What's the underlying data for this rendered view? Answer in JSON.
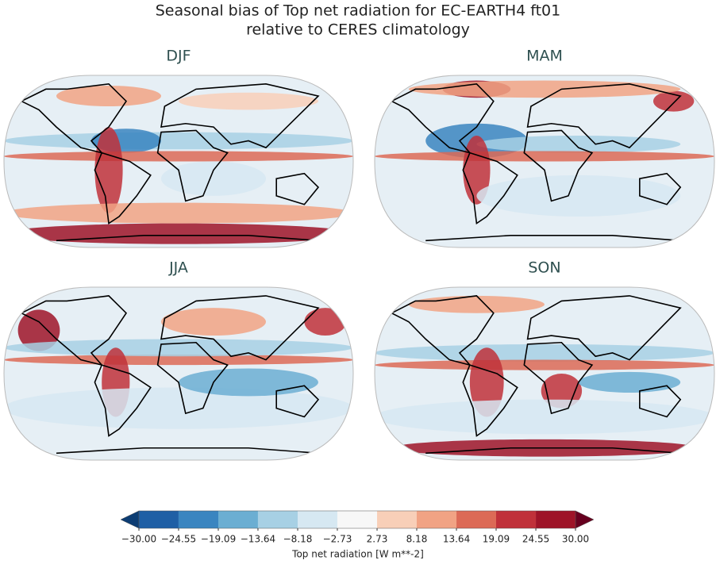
{
  "figure": {
    "title": [
      "Seasonal bias of Top net radiation for EC-EARTH4 ft01",
      "relative to CERES climatology"
    ],
    "panels": [
      {
        "title": "DJF"
      },
      {
        "title": "MAM"
      },
      {
        "title": "JJA"
      },
      {
        "title": "SON"
      }
    ],
    "colorbar": {
      "label": "Top net radiation [W m**-2]",
      "ticks": [
        {
          "value": -30,
          "label": "−30.00"
        },
        {
          "value": -24.55,
          "label": "−24.55"
        },
        {
          "value": -19.09,
          "label": "−19.09"
        },
        {
          "value": -13.64,
          "label": "−13.64"
        },
        {
          "value": -8.18,
          "label": "−8.18"
        },
        {
          "value": -2.73,
          "label": "−2.73"
        },
        {
          "value": 2.73,
          "label": "2.73"
        },
        {
          "value": 8.18,
          "label": "8.18"
        },
        {
          "value": 13.64,
          "label": "13.64"
        },
        {
          "value": 19.09,
          "label": "19.09"
        },
        {
          "value": 24.55,
          "label": "24.55"
        },
        {
          "value": 30,
          "label": "30.00"
        }
      ],
      "colors": [
        "#1f5fa5",
        "#3a85c0",
        "#6baed2",
        "#a7d0e4",
        "#d6e8f2",
        "#f7f7f7",
        "#f8cfb8",
        "#f1a384",
        "#dc6a56",
        "#c0313a",
        "#9e1428"
      ],
      "under_color": "#0d3d73",
      "over_color": "#67001f"
    }
  }
}
